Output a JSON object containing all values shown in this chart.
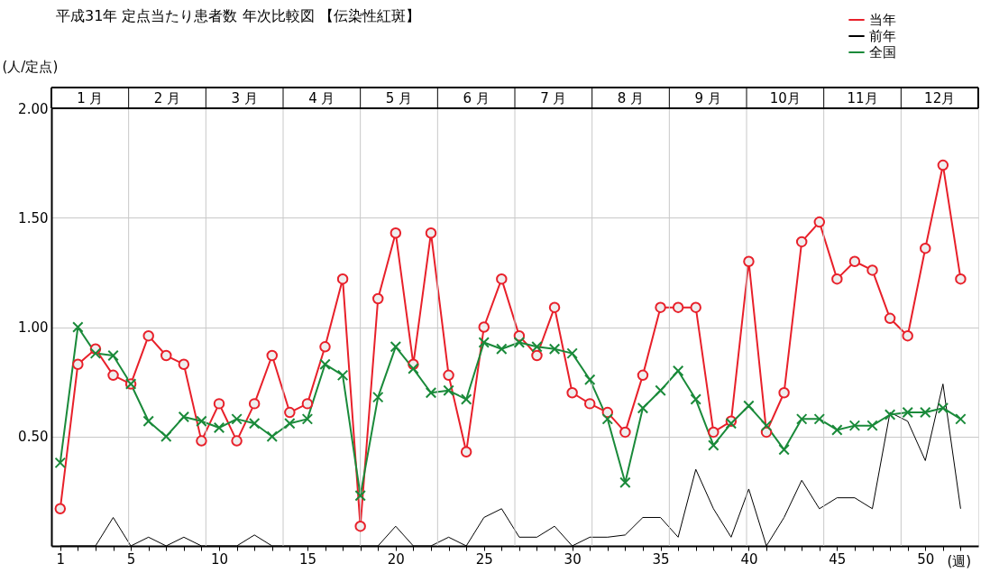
{
  "chart_data": {
    "type": "line",
    "title": "平成31年 定点当たり患者数 年次比較図 【伝染性紅斑】",
    "ylabel": "(人/定点)",
    "xlabel": "(週)",
    "x": [
      1,
      2,
      3,
      4,
      5,
      6,
      7,
      8,
      9,
      10,
      11,
      12,
      13,
      14,
      15,
      16,
      17,
      18,
      19,
      20,
      21,
      22,
      23,
      24,
      25,
      26,
      27,
      28,
      29,
      30,
      31,
      32,
      33,
      34,
      35,
      36,
      37,
      38,
      39,
      40,
      41,
      42,
      43,
      44,
      45,
      46,
      47,
      48,
      49,
      50,
      51,
      52
    ],
    "series": [
      {
        "name": "当年",
        "color": "#e8202a",
        "marker": "circle",
        "values": [
          0.17,
          0.83,
          0.9,
          0.78,
          0.74,
          0.96,
          0.87,
          0.83,
          0.48,
          0.65,
          0.48,
          0.65,
          0.87,
          0.61,
          0.65,
          0.91,
          1.22,
          0.09,
          1.13,
          1.43,
          0.83,
          1.43,
          0.78,
          0.43,
          1.0,
          1.22,
          0.96,
          0.87,
          1.09,
          0.7,
          0.65,
          0.61,
          0.52,
          0.78,
          1.09,
          1.09,
          1.09,
          0.52,
          0.57,
          1.3,
          0.52,
          0.7,
          1.39,
          1.48,
          1.22,
          1.3,
          1.26,
          1.04,
          0.96,
          1.36,
          1.74,
          1.22
        ]
      },
      {
        "name": "前年",
        "color": "#000000",
        "marker": "none",
        "values": [
          0,
          0,
          0,
          0.13,
          0,
          0.04,
          0,
          0.04,
          0,
          0,
          0,
          0.05,
          0,
          0,
          0,
          0,
          0,
          0,
          0,
          0.09,
          0,
          0,
          0.04,
          0,
          0.13,
          0.17,
          0.04,
          0.04,
          0.09,
          0,
          0.04,
          0.04,
          0.05,
          0.13,
          0.13,
          0.04,
          0.35,
          0.17,
          0.04,
          0.26,
          0,
          0.13,
          0.3,
          0.17,
          0.22,
          0.22,
          0.17,
          0.61,
          0.57,
          0.39,
          0.74,
          0.17
        ]
      },
      {
        "name": "全国",
        "color": "#1a8a3a",
        "marker": "cross",
        "values": [
          0.38,
          1.0,
          0.88,
          0.87,
          0.74,
          0.57,
          0.5,
          0.59,
          0.57,
          0.54,
          0.58,
          0.56,
          0.5,
          0.56,
          0.58,
          0.83,
          0.78,
          0.23,
          0.68,
          0.91,
          0.81,
          0.7,
          0.71,
          0.67,
          0.93,
          0.9,
          0.93,
          0.91,
          0.9,
          0.88,
          0.76,
          0.58,
          0.29,
          0.63,
          0.71,
          0.8,
          0.67,
          0.46,
          0.56,
          0.64,
          0.55,
          0.44,
          0.58,
          0.58,
          0.53,
          0.55,
          0.55,
          0.6,
          0.61,
          0.61,
          0.63,
          0.58
        ]
      }
    ],
    "xlim": [
      0.5,
      53
    ],
    "xticks": [
      1,
      {
        "value": 2,
        "label": null
      },
      {
        "value": 3,
        "label": null
      },
      {
        "value": 4,
        "label": null
      },
      5,
      {
        "value": 6,
        "label": null
      },
      {
        "value": 7,
        "label": null
      },
      {
        "value": 8,
        "label": null
      },
      {
        "value": 9,
        "label": null
      },
      10,
      {
        "value": 11,
        "label": null
      },
      {
        "value": 12,
        "label": null
      },
      {
        "value": 13,
        "label": null
      },
      {
        "value": 14,
        "label": null
      },
      15,
      {
        "value": 16,
        "label": null
      },
      {
        "value": 17,
        "label": null
      },
      {
        "value": 18,
        "label": null
      },
      {
        "value": 19,
        "label": null
      },
      20,
      {
        "value": 21,
        "label": null
      },
      {
        "value": 22,
        "label": null
      },
      {
        "value": 23,
        "label": null
      },
      {
        "value": 24,
        "label": null
      },
      25,
      {
        "value": 26,
        "label": null
      },
      {
        "value": 27,
        "label": null
      },
      {
        "value": 28,
        "label": null
      },
      {
        "value": 29,
        "label": null
      },
      30,
      {
        "value": 31,
        "label": null
      },
      {
        "value": 32,
        "label": null
      },
      {
        "value": 33,
        "label": null
      },
      {
        "value": 34,
        "label": null
      },
      35,
      {
        "value": 36,
        "label": null
      },
      {
        "value": 37,
        "label": null
      },
      {
        "value": 38,
        "label": null
      },
      {
        "value": 39,
        "label": null
      },
      40,
      {
        "value": 41,
        "label": null
      },
      {
        "value": 42,
        "label": null
      },
      {
        "value": 43,
        "label": null
      },
      {
        "value": 44,
        "label": null
      },
      45,
      {
        "value": 46,
        "label": null
      },
      {
        "value": 47,
        "label": null
      },
      {
        "value": 48,
        "label": null
      },
      {
        "value": 49,
        "label": null
      },
      50,
      {
        "value": 51,
        "label": null
      },
      {
        "value": 52,
        "label": null
      }
    ],
    "annotations": [
      "1 月",
      "2 月",
      "3 月",
      "4 月",
      "5 月",
      "6 月",
      "7 月",
      "8 月",
      "9 月",
      "10月",
      "11月",
      "12月"
    ],
    "ylim": [
      0,
      2
    ],
    "yticks": [
      {
        "value": 0.5,
        "label": "0.50"
      },
      {
        "value": 1.0,
        "label": "1.00"
      },
      {
        "value": 1.5,
        "label": "1.50"
      },
      {
        "value": 2.0,
        "label": "2.00"
      }
    ],
    "grid": true,
    "legend": "top right",
    "line_style": "solid"
  }
}
